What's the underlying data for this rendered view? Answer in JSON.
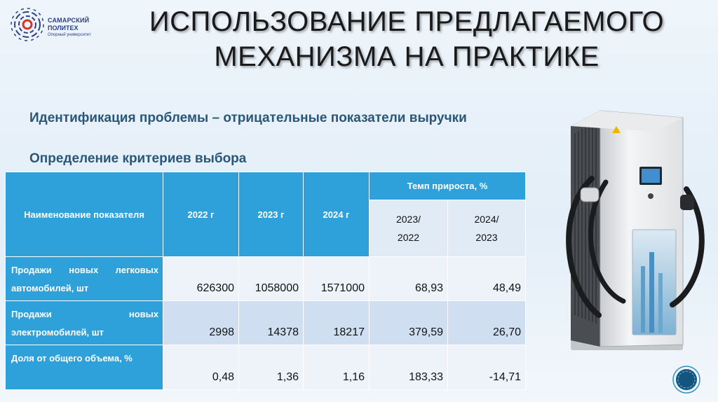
{
  "logo": {
    "line1": "САМАРСКИЙ",
    "line2": "ПОЛИТЕХ",
    "line3": "Опорный университет"
  },
  "title": {
    "line1": "ИСПОЛЬЗОВАНИЕ ПРЕДЛАГАЕМОГО",
    "line2": "МЕХАНИЗМА НА ПРАКТИКЕ"
  },
  "headings": {
    "problem": "Идентификация проблемы – отрицательные показатели выручки",
    "criteria": "Определение критериев выбора"
  },
  "table": {
    "header": {
      "name": "Наименование показателя",
      "y2022": "2022 г",
      "y2023": "2023 г",
      "y2024": "2024 г",
      "growth": "Темп прироста, %",
      "g1_line1": "2023/",
      "g1_line2": "2022",
      "g2_line1": "2024/",
      "g2_line2": "2023"
    },
    "rows": [
      {
        "label_w1": "Продажи",
        "label_w2": "новых",
        "label_w3": "легковых",
        "label_line2": "автомобилей, шт",
        "v2022": "626300",
        "v2023": "1058000",
        "v2024": "1571000",
        "g1": "68,93",
        "g2": "48,49"
      },
      {
        "label_w1": "Продажи",
        "label_w2": "новых",
        "label_line2": "электромобилей, шт",
        "v2022": "2998",
        "v2023": "14378",
        "v2024": "18217",
        "g1": "379,59",
        "g2": "26,70"
      },
      {
        "label": "Доля от общего объема, %",
        "v2022": "0,48",
        "v2023": "1,36",
        "v2024": "1,16",
        "g1": "183,33",
        "g2": "-14,71"
      }
    ]
  },
  "icons": {
    "logo": "university-logo-icon",
    "charger": "ev-charging-station-image",
    "nav": "circular-nav-icon"
  },
  "colors": {
    "header": "#2ea1da",
    "heading": "#2a5678"
  }
}
